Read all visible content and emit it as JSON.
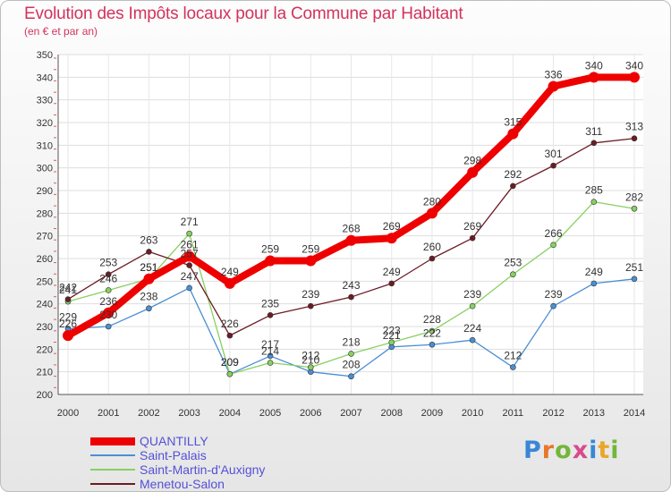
{
  "title": "Evolution des Impôts locaux pour la Commune par Habitant",
  "subtitle": "(en € et par an)",
  "logo": {
    "text": "Proxiti",
    "letters": [
      {
        "ch": "P",
        "color": "#3a86d6"
      },
      {
        "ch": "r",
        "color": "#e8762b"
      },
      {
        "ch": "o",
        "color": "#73b63a"
      },
      {
        "ch": "x",
        "color": "#d94a8c"
      },
      {
        "ch": "i",
        "color": "#3a86d6"
      },
      {
        "ch": "t",
        "color": "#e8a72b"
      },
      {
        "ch": "i",
        "color": "#73b63a"
      }
    ]
  },
  "chart_data": {
    "type": "line",
    "x": [
      "2000",
      "2001",
      "2002",
      "2003",
      "2004",
      "2005",
      "2006",
      "2007",
      "2008",
      "2009",
      "2010",
      "2011",
      "2012",
      "2013",
      "2014"
    ],
    "ylim": [
      200,
      350
    ],
    "yticks": [
      200,
      210,
      220,
      230,
      240,
      250,
      260,
      270,
      280,
      290,
      300,
      310,
      320,
      330,
      340,
      350
    ],
    "grid": true,
    "legend_position": "bottom-left",
    "series": [
      {
        "name": "QUANTILLY",
        "color": "#ee0000",
        "values": [
          226,
          236,
          251,
          261,
          249,
          259,
          259,
          268,
          269,
          280,
          298,
          315,
          336,
          340,
          340
        ]
      },
      {
        "name": "Saint-Palais",
        "color": "#4a8fd4",
        "values": [
          229,
          230,
          238,
          247,
          209,
          217,
          210,
          208,
          221,
          222,
          224,
          212,
          239,
          249,
          251
        ]
      },
      {
        "name": "Saint-Martin-d'Auxigny",
        "color": "#88d060",
        "values": [
          241,
          246,
          251,
          271,
          209,
          214,
          212,
          218,
          223,
          228,
          239,
          253,
          266,
          285,
          282
        ]
      },
      {
        "name": "Menetou-Salon",
        "color": "#6b1c24",
        "values": [
          242,
          253,
          263,
          257,
          226,
          235,
          239,
          243,
          249,
          260,
          269,
          292,
          301,
          311,
          313
        ]
      }
    ]
  }
}
